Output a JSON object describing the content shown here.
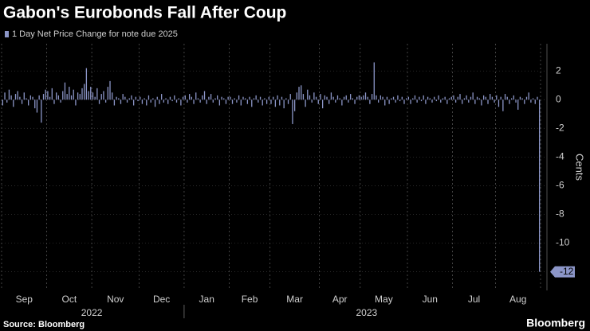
{
  "chart_data": {
    "type": "bar",
    "title": "Gabon's Eurobonds Fall After Coup",
    "legend": "1 Day Net Price Change for note due 2025",
    "y_label": "Cents",
    "source": "Source: Bloomberg",
    "brand": "Bloomberg",
    "color": "#8c96c8",
    "values": [
      -0.4,
      0.5,
      -0.2,
      0.7,
      0.3,
      -0.5,
      0.4,
      0.6,
      0.2,
      -0.3,
      0.5,
      0.1,
      -0.4,
      0.3,
      0.2,
      -0.6,
      -0.9,
      0.3,
      -1.6,
      0.4,
      0.7,
      0.6,
      0.2,
      0.8,
      -0.3,
      0.5,
      0.3,
      -0.2,
      0.6,
      1.2,
      0.4,
      0.9,
      0.3,
      0.7,
      -0.4,
      0.5,
      0.4,
      0.8,
      1.1,
      2.2,
      0.6,
      0.9,
      0.5,
      0.2,
      0.8,
      -0.3,
      0.4,
      0.6,
      -0.2,
      0.9,
      1.3,
      0.5,
      -0.4,
      0.2,
      0.1,
      -0.3,
      0.4,
      0.2,
      -0.2,
      0.1,
      0.3,
      -0.4,
      0.2,
      -0.1,
      0.2,
      -0.3,
      0.1,
      -0.4,
      0.3,
      -0.2,
      0.1,
      -0.5,
      0.2,
      -0.3,
      0.4,
      -0.2,
      0.1,
      -0.3,
      0.2,
      -0.1,
      0.3,
      -0.2,
      0.1,
      -0.4,
      0.2,
      0.3,
      -0.2,
      0.4,
      0.2,
      -0.3,
      0.5,
      0.1,
      -0.2,
      0.3,
      0.6,
      -0.3,
      0.2,
      0.4,
      -0.2,
      0.1,
      0.3,
      -0.4,
      0.2,
      0.1,
      -0.3,
      0.2,
      0.2,
      -0.3,
      0.1,
      -0.2,
      0.3,
      -0.4,
      0.2,
      0.1,
      -0.3,
      0.2,
      -0.5,
      0.1,
      0.3,
      -0.2,
      0.2,
      -0.4,
      0.1,
      -0.3,
      0.2,
      -0.3,
      0.2,
      -0.5,
      0.3,
      -0.4,
      0.2,
      -0.6,
      0.1,
      -0.3,
      0.4,
      -1.7,
      -0.8,
      0.5,
      0.9,
      1.0,
      0.4,
      -0.5,
      0.7,
      0.3,
      -0.2,
      0.5,
      0.2,
      -0.3,
      0.4,
      -0.6,
      0.3,
      0.2,
      -0.3,
      0.5,
      0.2,
      -0.2,
      0.3,
      0.1,
      -0.4,
      0.2,
      0.3,
      -0.2,
      0.4,
      0.1,
      -0.3,
      0.2,
      0.3,
      0.2,
      0.3,
      0.5,
      0.2,
      -0.3,
      0.4,
      2.6,
      0.3,
      -0.2,
      0.3,
      0.2,
      -0.4,
      0.2,
      -0.3,
      0.1,
      0.2,
      -0.2,
      0.3,
      -0.1,
      0.2,
      -0.3,
      0.1,
      0.2,
      -0.3,
      0.1,
      0.3,
      -0.2,
      0.2,
      -0.1,
      0.3,
      -0.3,
      0.2,
      0.1,
      -0.2,
      0.2,
      -0.1,
      0.3,
      -0.2,
      0.1,
      0.2,
      -0.3,
      0.1,
      0.2,
      0.3,
      -0.2,
      0.2,
      0.4,
      -0.3,
      0.1,
      0.3,
      -0.2,
      0.2,
      0.5,
      -0.3,
      0.2,
      0.1,
      -0.4,
      0.3,
      0.2,
      -0.3,
      0.4,
      0.2,
      -0.2,
      0.3,
      -0.5,
      0.2,
      -0.8,
      0.4,
      0.2,
      -0.3,
      0.1,
      0.3,
      -0.2,
      -0.7,
      0.2,
      0.1,
      -0.3,
      0.2,
      0.5,
      -0.2,
      0.1,
      -0.3,
      0.2,
      -12
    ],
    "xlim": [
      0,
      251
    ],
    "xticks": [
      {
        "value": 10.5,
        "label": "Sep"
      },
      {
        "value": 31.5,
        "label": "Oct"
      },
      {
        "value": 53,
        "label": "Nov"
      },
      {
        "value": 74.5,
        "label": "Dec"
      },
      {
        "value": 95.5,
        "label": "Jan"
      },
      {
        "value": 115.5,
        "label": "Feb"
      },
      {
        "value": 136.5,
        "label": "Mar"
      },
      {
        "value": 157.5,
        "label": "Apr"
      },
      {
        "value": 178,
        "label": "May"
      },
      {
        "value": 199.5,
        "label": "Jun"
      },
      {
        "value": 220,
        "label": "Jul"
      },
      {
        "value": 240.5,
        "label": "Aug"
      }
    ],
    "xgrid": [
      0,
      21,
      42,
      64,
      85,
      106,
      125,
      148,
      167,
      189,
      210,
      230,
      251
    ],
    "year_ticks": [
      {
        "value": 42,
        "label": "2022"
      },
      {
        "value": 170,
        "label": "2023"
      }
    ],
    "year_boundary": 85,
    "ylim": [
      -13.3,
      3.9
    ],
    "yticks": [
      2,
      0,
      -2,
      -4,
      -6,
      -8,
      -10,
      -12
    ],
    "grid": true
  }
}
